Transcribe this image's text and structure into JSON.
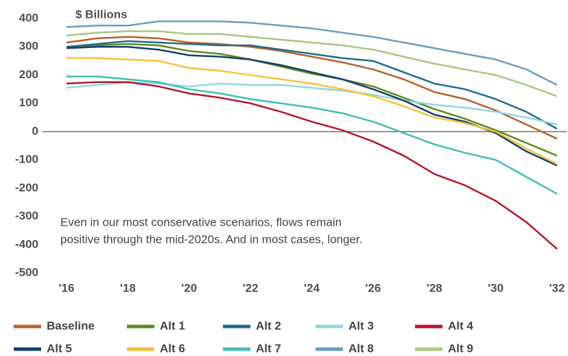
{
  "chart_data": {
    "type": "line",
    "y_axis_label": "$ Billions",
    "annotation": [
      "Even in our most conservative scenarios, flows remain",
      "positive through the mid-2020s. And in most cases, longer."
    ],
    "categories": [
      "'16",
      null,
      "'18",
      null,
      "'20",
      null,
      "'22",
      null,
      "'24",
      null,
      "'26",
      null,
      "'28",
      null,
      "'30",
      null,
      "'32"
    ],
    "ylim": [
      -500,
      400
    ],
    "yticks": [
      400,
      300,
      200,
      100,
      0,
      -100,
      -200,
      -300,
      -400,
      -500
    ],
    "grid": false,
    "legend": "bottom",
    "series": [
      {
        "name": "Baseline",
        "color": "#b8602a",
        "values": [
          315,
          330,
          335,
          330,
          315,
          310,
          300,
          285,
          265,
          245,
          220,
          185,
          140,
          115,
          75,
          25,
          -25
        ]
      },
      {
        "name": "Alt 1",
        "color": "#5e8a1e",
        "values": [
          300,
          305,
          310,
          305,
          285,
          275,
          255,
          230,
          205,
          185,
          160,
          120,
          80,
          45,
          5,
          -40,
          -85
        ]
      },
      {
        "name": "Alt 2",
        "color": "#1f6b8f",
        "values": [
          300,
          310,
          320,
          315,
          310,
          305,
          305,
          290,
          275,
          260,
          250,
          210,
          170,
          150,
          115,
          70,
          10
        ]
      },
      {
        "name": "Alt 3",
        "color": "#8dd8df",
        "values": [
          155,
          165,
          175,
          170,
          160,
          170,
          165,
          165,
          155,
          145,
          130,
          110,
          95,
          85,
          70,
          50,
          25
        ]
      },
      {
        "name": "Alt 4",
        "color": "#b5152b",
        "values": [
          170,
          175,
          175,
          160,
          135,
          120,
          100,
          70,
          35,
          5,
          -35,
          -85,
          -150,
          -190,
          -245,
          -320,
          -415
        ]
      },
      {
        "name": "Alt 5",
        "color": "#143f6e",
        "values": [
          295,
          300,
          300,
          290,
          270,
          265,
          255,
          235,
          210,
          185,
          150,
          110,
          60,
          35,
          -5,
          -70,
          -120
        ]
      },
      {
        "name": "Alt 6",
        "color": "#f8c03c",
        "values": [
          260,
          260,
          255,
          250,
          225,
          215,
          200,
          185,
          170,
          150,
          125,
          90,
          50,
          30,
          0,
          -60,
          -115
        ]
      },
      {
        "name": "Alt 7",
        "color": "#3fbfb0",
        "values": [
          195,
          195,
          185,
          175,
          150,
          135,
          115,
          100,
          85,
          65,
          35,
          -5,
          -45,
          -75,
          -100,
          -160,
          -220
        ]
      },
      {
        "name": "Alt 8",
        "color": "#6a9cc0",
        "values": [
          370,
          375,
          375,
          390,
          390,
          390,
          385,
          375,
          365,
          350,
          335,
          315,
          295,
          275,
          255,
          220,
          165
        ]
      },
      {
        "name": "Alt 9",
        "color": "#a7c77e",
        "values": [
          340,
          350,
          355,
          355,
          345,
          345,
          335,
          325,
          315,
          305,
          290,
          265,
          240,
          220,
          200,
          165,
          125
        ]
      }
    ]
  }
}
